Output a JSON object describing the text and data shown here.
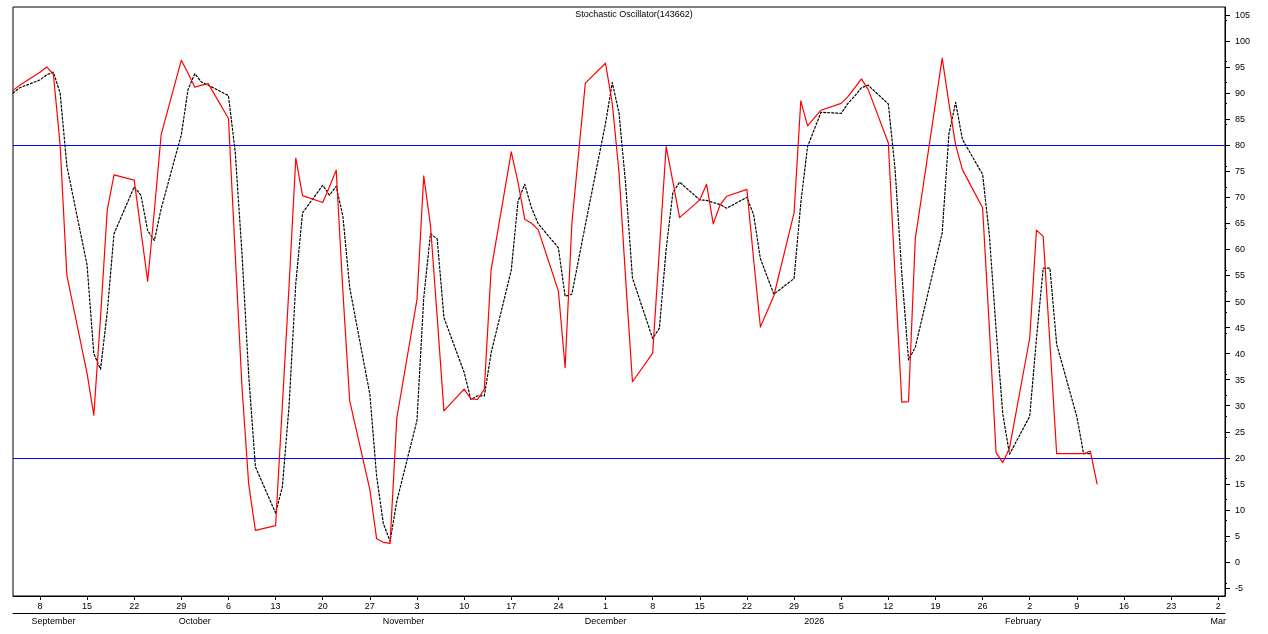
{
  "chart_data": {
    "type": "line",
    "title": "Stochastic Oscillator(143662)",
    "x": [
      "2025-09-04",
      "2025-09-05",
      "2025-09-08",
      "2025-09-09",
      "2025-09-10",
      "2025-09-11",
      "2025-09-12",
      "2025-09-15",
      "2025-09-16",
      "2025-09-17",
      "2025-09-18",
      "2025-09-19",
      "2025-09-22",
      "2025-09-23",
      "2025-09-24",
      "2025-09-25",
      "2025-09-26",
      "2025-09-29",
      "2025-09-30",
      "2025-10-01",
      "2025-10-02",
      "2025-10-03",
      "2025-10-06",
      "2025-10-07",
      "2025-10-08",
      "2025-10-09",
      "2025-10-10",
      "2025-10-13",
      "2025-10-14",
      "2025-10-15",
      "2025-10-16",
      "2025-10-17",
      "2025-10-20",
      "2025-10-21",
      "2025-10-22",
      "2025-10-23",
      "2025-10-24",
      "2025-10-27",
      "2025-10-28",
      "2025-10-29",
      "2025-10-30",
      "2025-10-31",
      "2025-11-03",
      "2025-11-04",
      "2025-11-05",
      "2025-11-06",
      "2025-11-07",
      "2025-11-10",
      "2025-11-11",
      "2025-11-12",
      "2025-11-13",
      "2025-11-14",
      "2025-11-17",
      "2025-11-18",
      "2025-11-19",
      "2025-11-20",
      "2025-11-21",
      "2025-11-24",
      "2025-11-25",
      "2025-11-26",
      "2025-11-28",
      "2025-12-01",
      "2025-12-02",
      "2025-12-03",
      "2025-12-04",
      "2025-12-05",
      "2025-12-08",
      "2025-12-09",
      "2025-12-10",
      "2025-12-11",
      "2025-12-12",
      "2025-12-15",
      "2025-12-16",
      "2025-12-17",
      "2025-12-18",
      "2025-12-19",
      "2025-12-22",
      "2025-12-23",
      "2025-12-24",
      "2025-12-26",
      "2025-12-29",
      "2025-12-30",
      "2025-12-31",
      "2026-01-02",
      "2026-01-05",
      "2026-01-06",
      "2026-01-07",
      "2026-01-08",
      "2026-01-09",
      "2026-01-12",
      "2026-01-13",
      "2026-01-14",
      "2026-01-15",
      "2026-01-16",
      "2026-01-20",
      "2026-01-21",
      "2026-01-22",
      "2026-01-23",
      "2026-01-26",
      "2026-01-27",
      "2026-01-28",
      "2026-01-29",
      "2026-01-30",
      "2026-02-02",
      "2026-02-03",
      "2026-02-04",
      "2026-02-05",
      "2026-02-06",
      "2026-02-09",
      "2026-02-10",
      "2026-02-11",
      "2026-02-12"
    ],
    "series": [
      {
        "color": "#ff0000",
        "line_style": "solid",
        "values": [
          90.5,
          91.5,
          94,
          95,
          93.6,
          80,
          55,
          36.2,
          28.2,
          47,
          67.6,
          74.3,
          73.3,
          63.6,
          53.9,
          67.5,
          82,
          96.3,
          93.8,
          91.1,
          91.5,
          91.8,
          85.1,
          59.2,
          33.8,
          15,
          6.1,
          7,
          30,
          53,
          77.5,
          70.3,
          69,
          72,
          75.2,
          51.8,
          31,
          13.9,
          4.5,
          3.8,
          3.6,
          27.6,
          50.4,
          74.1,
          64.6,
          47,
          29,
          33.2,
          31.3,
          31.2,
          33.2,
          56,
          78.7,
          72.9,
          65.8,
          65,
          63.8,
          52,
          37.3,
          65,
          91.9,
          95.7,
          88,
          74.8,
          54,
          34.6,
          40.1,
          60,
          79.7,
          73,
          66.1,
          69.5,
          72.5,
          64.9,
          68.5,
          70.2,
          71.5,
          58,
          45.1,
          51.1,
          67,
          88.5,
          83.7,
          86.7,
          88,
          89.3,
          91,
          92.7,
          90.7,
          80.4,
          55,
          30.7,
          30.8,
          62,
          96.7,
          88,
          80,
          75.3,
          68,
          45,
          21,
          19.1,
          21.9,
          43,
          63.7,
          62.5,
          42,
          20.8,
          20.8,
          20.8,
          21.3,
          15
        ]
      },
      {
        "color": "#000000",
        "line_style": "dotted",
        "values": [
          90,
          91,
          92.5,
          93.5,
          94,
          90,
          76,
          57,
          40,
          37,
          48,
          63,
          72,
          70.4,
          63.6,
          61.7,
          67.8,
          82,
          90.7,
          93.7,
          92.1,
          91.5,
          89.5,
          78.7,
          59.4,
          36,
          18.3,
          9.4,
          14.4,
          30,
          53.5,
          67,
          72.3,
          70.4,
          72.1,
          66.3,
          52.7,
          32.2,
          16.5,
          7.4,
          4,
          11.7,
          27.2,
          50.7,
          63,
          62,
          46.9,
          36.4,
          31.2,
          31.9,
          31.9,
          40.1,
          56,
          69.2,
          72.5,
          68,
          64.9,
          60.3,
          51,
          51.4,
          64.7,
          84.2,
          92,
          86.2,
          72.3,
          54.5,
          42.9,
          44.9,
          60,
          70.9,
          72.9,
          69.5,
          69.4,
          69,
          68.6,
          67.9,
          70,
          66.6,
          58.2,
          51.4,
          54.4,
          68.9,
          79.7,
          86.3,
          86.1,
          88,
          89.4,
          91,
          91.5,
          87.9,
          75.4,
          55.4,
          38.8,
          41.2,
          63.2,
          82.2,
          88.2,
          81.1,
          74.4,
          62.8,
          44.7,
          28.4,
          20.7,
          28,
          42.9,
          56.4,
          56.4,
          41.8,
          27.9,
          20.8,
          20.8,
          null
        ]
      }
    ],
    "xlim": [
      "2025-09-04",
      "2026-03-03"
    ],
    "xticks": [
      {
        "value": "2025-09-08",
        "label": "8"
      },
      {
        "value": "2025-09-15",
        "label": "15"
      },
      {
        "value": "2025-09-22",
        "label": "22"
      },
      {
        "value": "2025-09-29",
        "label": "29"
      },
      {
        "value": "2025-10-06",
        "label": "6"
      },
      {
        "value": "2025-10-13",
        "label": "13"
      },
      {
        "value": "2025-10-20",
        "label": "20"
      },
      {
        "value": "2025-10-27",
        "label": "27"
      },
      {
        "value": "2025-11-03",
        "label": "3"
      },
      {
        "value": "2025-11-10",
        "label": "10"
      },
      {
        "value": "2025-11-17",
        "label": "17"
      },
      {
        "value": "2025-11-24",
        "label": "24"
      },
      {
        "value": "2025-12-01",
        "label": "1"
      },
      {
        "value": "2025-12-08",
        "label": "8"
      },
      {
        "value": "2025-12-15",
        "label": "15"
      },
      {
        "value": "2025-12-22",
        "label": "22"
      },
      {
        "value": "2025-12-29",
        "label": "29"
      },
      {
        "value": "2026-01-05",
        "label": "5"
      },
      {
        "value": "2026-01-12",
        "label": "12"
      },
      {
        "value": "2026-01-19",
        "label": "19"
      },
      {
        "value": "2026-01-26",
        "label": "26"
      },
      {
        "value": "2026-02-02",
        "label": "2"
      },
      {
        "value": "2026-02-09",
        "label": "9"
      },
      {
        "value": "2026-02-16",
        "label": "16"
      },
      {
        "value": "2026-02-23",
        "label": "23"
      },
      {
        "value": "2026-03-02",
        "label": "2"
      }
    ],
    "x2lim": [
      "2025-09-04",
      "2026-03-03"
    ],
    "x2ticks": [
      {
        "value": "2025-09-10",
        "label": "September"
      },
      {
        "value": "2025-10-01",
        "label": "October"
      },
      {
        "value": "2025-11-01",
        "label": "November"
      },
      {
        "value": "2025-12-01",
        "label": "December"
      },
      {
        "value": "2026-01-01",
        "label": "2026"
      },
      {
        "value": "2026-02-01",
        "label": "February"
      },
      {
        "value": "2026-03-02",
        "label": "Mar"
      }
    ],
    "ylim": [
      -6.5,
      106.5
    ],
    "yticks": [
      -5,
      0,
      5,
      10,
      15,
      20,
      25,
      30,
      35,
      40,
      45,
      50,
      55,
      60,
      65,
      70,
      75,
      80,
      85,
      90,
      95,
      100,
      105
    ],
    "ref_lines": [
      {
        "axis": "y",
        "value": 80,
        "color": "#0000ff"
      },
      {
        "axis": "y",
        "value": 20,
        "color": "#0000ff"
      }
    ],
    "grid": false,
    "marker": "none"
  }
}
